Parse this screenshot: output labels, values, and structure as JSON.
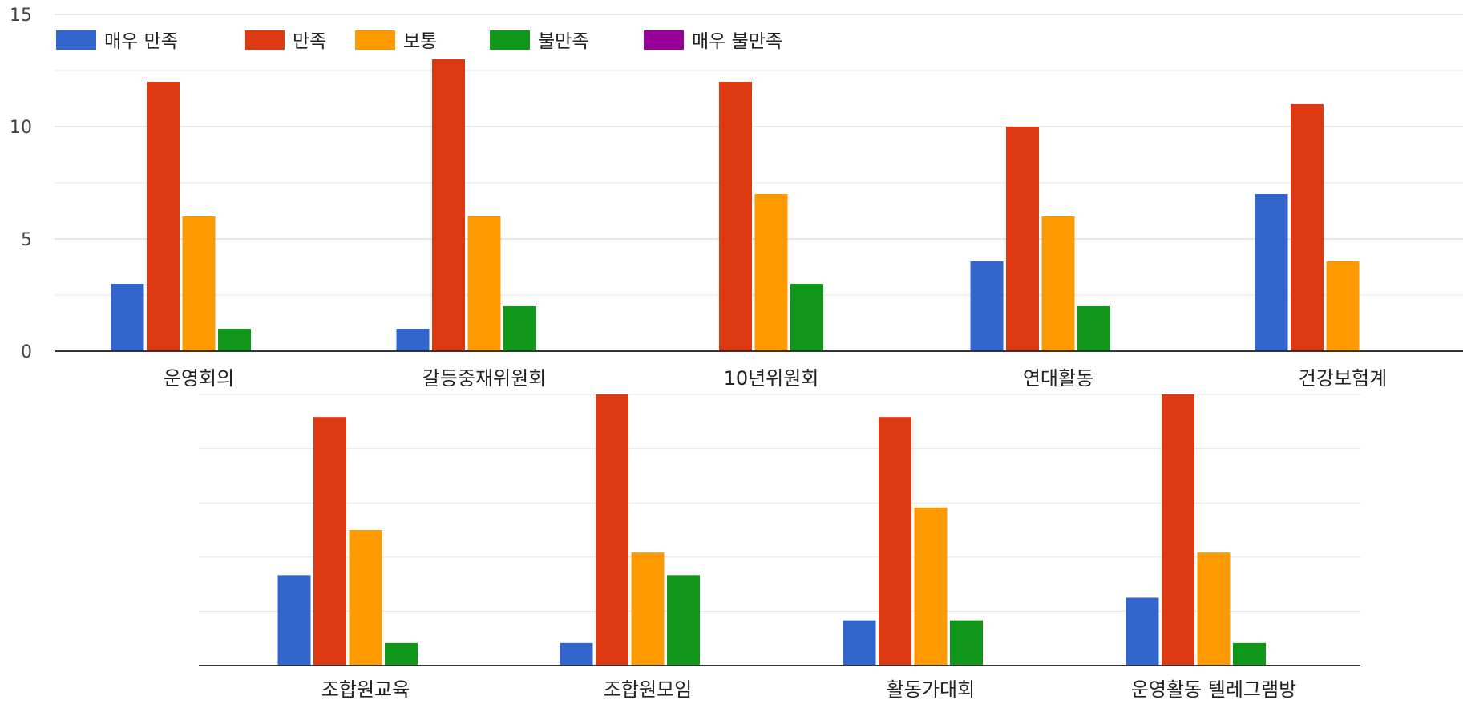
{
  "chart_data": [
    {
      "type": "bar",
      "categories": [
        "운영회의",
        "갈등중재위원회",
        "10년위원회",
        "연대활동",
        "건강보험계"
      ],
      "series": [
        {
          "name": "매우 만족",
          "color": "#3366cc",
          "values": [
            3,
            1,
            0,
            4,
            7
          ]
        },
        {
          "name": "만족",
          "color": "#dc3912",
          "values": [
            12,
            13,
            12,
            10,
            11
          ]
        },
        {
          "name": "보통",
          "color": "#ff9900",
          "values": [
            6,
            6,
            7,
            6,
            4
          ]
        },
        {
          "name": "불만족",
          "color": "#109618",
          "values": [
            1,
            2,
            3,
            2,
            0
          ]
        },
        {
          "name": "매우 불만족",
          "color": "#990099",
          "values": [
            0,
            0,
            0,
            0,
            0
          ]
        }
      ],
      "ylim": [
        0,
        15
      ],
      "y_ticks": [
        "0",
        "5",
        "10",
        "15"
      ],
      "legend": "top-left",
      "grid": true
    },
    {
      "type": "bar",
      "categories": [
        "조합원교육",
        "조합원모임",
        "활동가대회",
        "운영활동 텔레그램방"
      ],
      "series": [
        {
          "name": "매우 만족",
          "color": "#3366cc",
          "values": [
            4,
            1,
            2,
            3
          ]
        },
        {
          "name": "만족",
          "color": "#dc3912",
          "values": [
            11,
            12,
            11,
            12
          ]
        },
        {
          "name": "보통",
          "color": "#ff9900",
          "values": [
            6,
            5,
            7,
            5
          ]
        },
        {
          "name": "불만족",
          "color": "#109618",
          "values": [
            1,
            4,
            2,
            1
          ]
        },
        {
          "name": "매우 불만족",
          "color": "#990099",
          "values": [
            0,
            0,
            0,
            0
          ]
        }
      ],
      "ylim": [
        0,
        12
      ],
      "legend": "none",
      "grid": true
    }
  ]
}
